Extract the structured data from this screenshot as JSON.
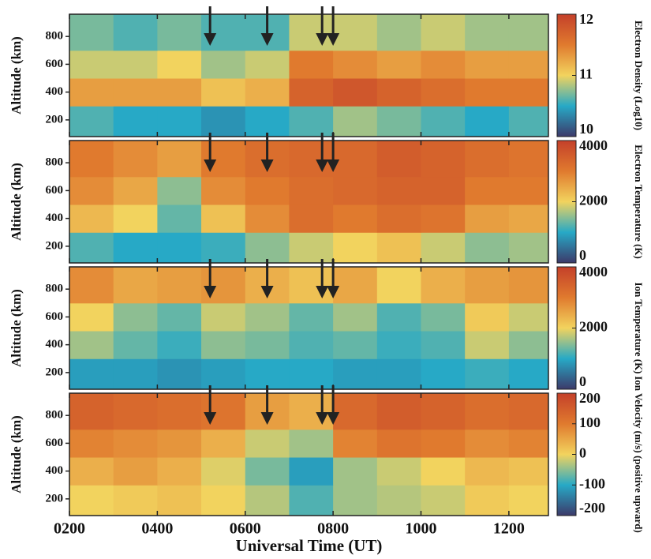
{
  "chart_data": [
    {
      "type": "heatmap",
      "ylabel": "Altitude (km)",
      "colorbar_label": "Electron Density (Log10)",
      "xlim": [
        2,
        12.9
      ],
      "ylim": [
        80,
        960
      ],
      "yticks": [
        200,
        400,
        600,
        800
      ],
      "zlim": [
        10,
        12
      ],
      "zticks": [
        10,
        11,
        12
      ],
      "colorscale": [
        "#3c3a6a",
        "#27a9c6",
        "#f2d35e",
        "#e07a2e",
        "#c4402a"
      ],
      "xbins": [
        2,
        3,
        4,
        5,
        6,
        7,
        8,
        9,
        10,
        11,
        12,
        12.9
      ],
      "ybins": [
        80,
        300,
        500,
        700,
        960
      ],
      "values": [
        [
          10.6,
          10.5,
          10.5,
          10.4,
          10.5,
          10.6,
          10.8,
          10.7,
          10.6,
          10.5,
          10.6
        ],
        [
          11.3,
          11.3,
          11.3,
          11.1,
          11.2,
          11.7,
          11.8,
          11.7,
          11.6,
          11.5,
          11.5
        ],
        [
          10.9,
          10.9,
          11.0,
          10.8,
          10.9,
          11.5,
          11.4,
          11.3,
          11.4,
          11.3,
          11.3
        ],
        [
          10.7,
          10.6,
          10.7,
          10.6,
          10.6,
          10.9,
          10.9,
          10.8,
          10.9,
          10.8,
          10.8
        ]
      ],
      "arrows": [
        5.2,
        6.5,
        7.75,
        8.0
      ]
    },
    {
      "type": "heatmap",
      "ylabel": "Altitude (km)",
      "colorbar_label": "Electron Temperature (K)",
      "xlim": [
        2,
        12.9
      ],
      "ylim": [
        80,
        960
      ],
      "yticks": [
        200,
        400,
        600,
        800
      ],
      "zlim": [
        0,
        4000
      ],
      "zticks": [
        0,
        2000,
        4000
      ],
      "colorscale": [
        "#3c3a6a",
        "#27a9c6",
        "#f2d35e",
        "#e07a2e",
        "#c4402a"
      ],
      "xbins": [
        2,
        3,
        4,
        5,
        6,
        7,
        8,
        9,
        10,
        11,
        12,
        12.9
      ],
      "ybins": [
        80,
        300,
        500,
        700,
        960
      ],
      "values": [
        [
          1200,
          1000,
          1000,
          1100,
          1500,
          1800,
          2000,
          2200,
          1800,
          1500,
          1600
        ],
        [
          2300,
          2000,
          1300,
          2200,
          2800,
          3200,
          3000,
          3200,
          3100,
          2600,
          2500
        ],
        [
          2800,
          2500,
          1500,
          2800,
          3000,
          3200,
          3300,
          3400,
          3400,
          3000,
          3000
        ],
        [
          3000,
          2800,
          2600,
          3000,
          3200,
          3300,
          3300,
          3500,
          3400,
          3200,
          3100
        ]
      ],
      "arrows": [
        5.2,
        6.5,
        7.75,
        8.0
      ]
    },
    {
      "type": "heatmap",
      "ylabel": "Altitude (km)",
      "colorbar_label": "Ion Temperature (K)",
      "xlim": [
        2,
        12.9
      ],
      "ylim": [
        80,
        960
      ],
      "yticks": [
        200,
        400,
        600,
        800
      ],
      "zlim": [
        0,
        4000
      ],
      "zticks": [
        0,
        2000,
        4000
      ],
      "colorscale": [
        "#3c3a6a",
        "#27a9c6",
        "#f2d35e",
        "#e07a2e",
        "#c4402a"
      ],
      "xbins": [
        2,
        3,
        4,
        5,
        6,
        7,
        8,
        9,
        10,
        11,
        12,
        12.9
      ],
      "ybins": [
        80,
        300,
        500,
        700,
        960
      ],
      "values": [
        [
          900,
          900,
          800,
          900,
          1000,
          1000,
          900,
          900,
          1000,
          1100,
          1000
        ],
        [
          1600,
          1300,
          1100,
          1500,
          1400,
          1200,
          1300,
          1100,
          1200,
          1800,
          1500
        ],
        [
          2000,
          1500,
          1300,
          1800,
          1600,
          1300,
          1600,
          1200,
          1400,
          2100,
          1800
        ],
        [
          2800,
          2500,
          2600,
          2700,
          2400,
          2200,
          2500,
          2000,
          2400,
          2600,
          2700
        ]
      ],
      "arrows": [
        5.2,
        6.5,
        7.75,
        8.0
      ]
    },
    {
      "type": "heatmap",
      "ylabel": "Altitude (km)",
      "colorbar_label": "Ion Velocity (m/s) (positive upward)",
      "xlabel": "Universal Time (UT)",
      "xlim": [
        2,
        12.9
      ],
      "xticks": [
        {
          "value": 2,
          "label": "0200"
        },
        {
          "value": 4,
          "label": "0400"
        },
        {
          "value": 6,
          "label": "0600"
        },
        {
          "value": 8,
          "label": "0800"
        },
        {
          "value": 10,
          "label": "1000"
        },
        {
          "value": 12,
          "label": "1200"
        }
      ],
      "ylim": [
        80,
        960
      ],
      "yticks": [
        200,
        400,
        600,
        800
      ],
      "zlim": [
        -200,
        200
      ],
      "zticks": [
        -200,
        -100,
        0,
        100,
        200
      ],
      "colorscale": [
        "#3c3a6a",
        "#27a9c6",
        "#f2d35e",
        "#e07a2e",
        "#c4402a"
      ],
      "xbins": [
        2,
        3,
        4,
        5,
        6,
        7,
        8,
        9,
        10,
        11,
        12,
        12.9
      ],
      "ybins": [
        80,
        300,
        500,
        700,
        960
      ],
      "values": [
        [
          0,
          10,
          20,
          0,
          -30,
          -80,
          -40,
          -30,
          -20,
          10,
          0
        ],
        [
          40,
          60,
          40,
          -10,
          -60,
          -110,
          -40,
          -20,
          0,
          30,
          20
        ],
        [
          90,
          80,
          70,
          40,
          -20,
          -40,
          90,
          110,
          100,
          80,
          90
        ],
        [
          140,
          130,
          120,
          110,
          60,
          40,
          130,
          150,
          140,
          120,
          130
        ]
      ],
      "arrows": [
        5.2,
        6.5,
        7.75,
        8.0
      ]
    }
  ]
}
